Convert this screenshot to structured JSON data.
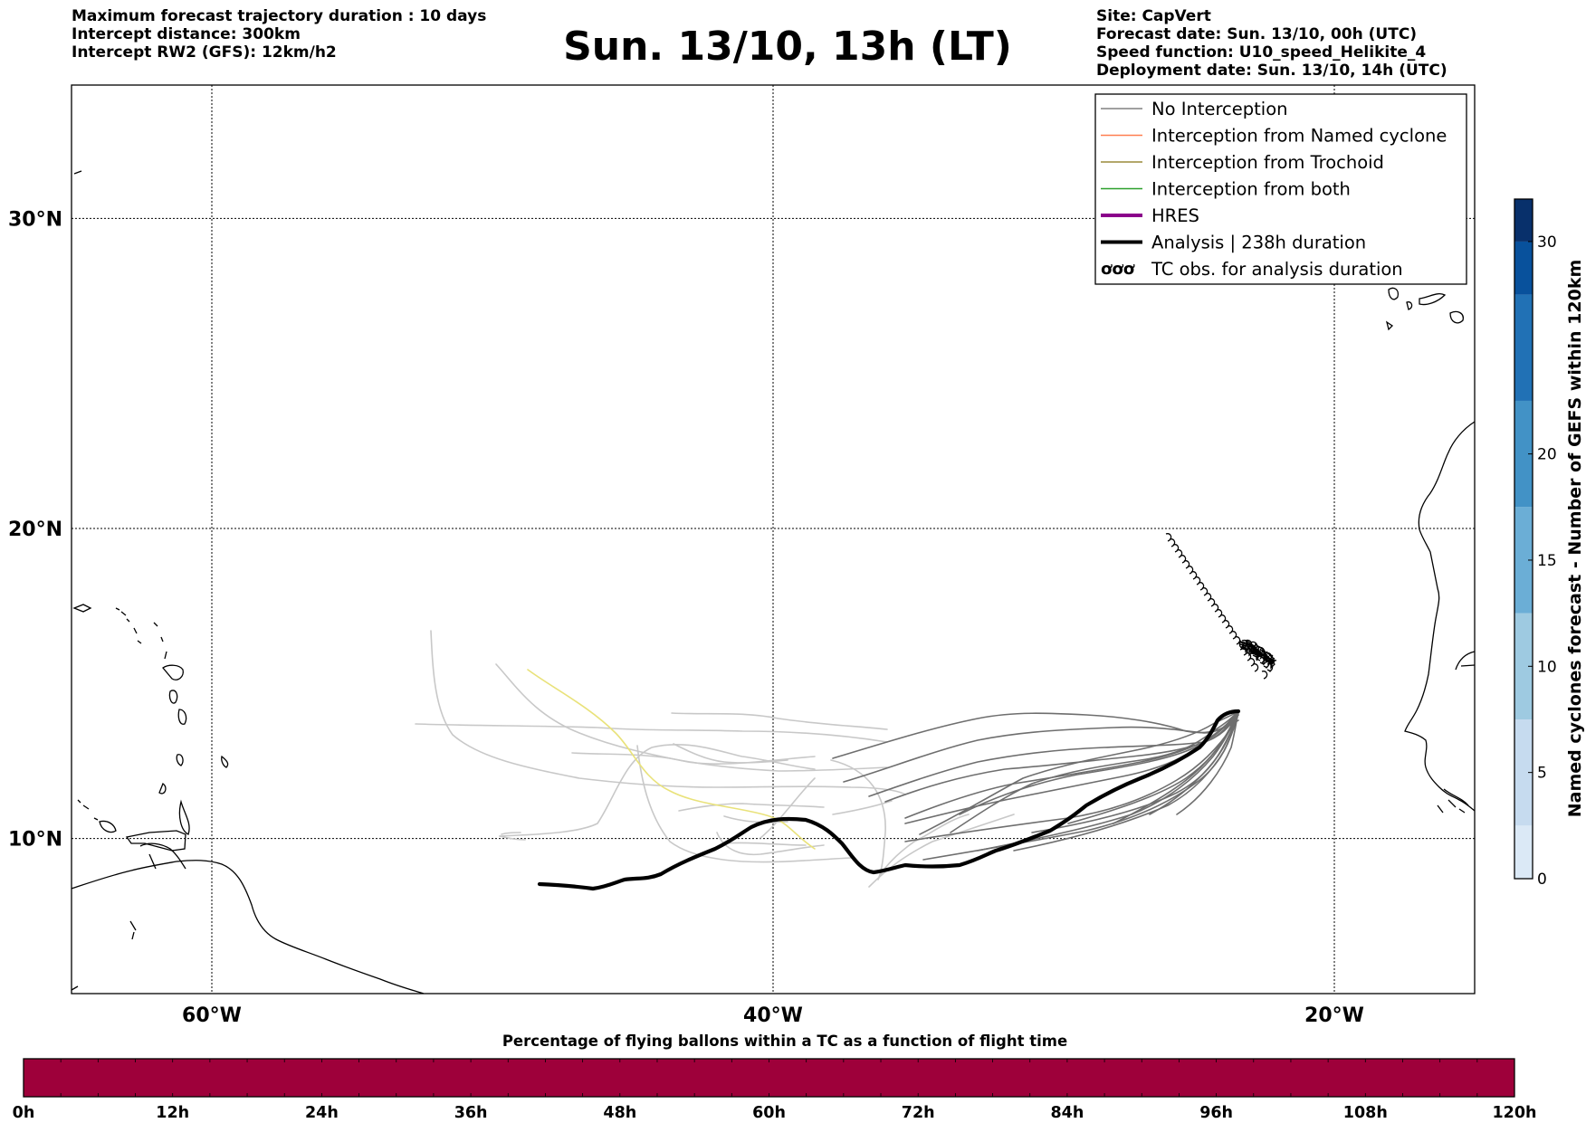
{
  "header": {
    "left": [
      "Maximum forecast trajectory duration : 10 days",
      "Intercept distance: 300km",
      "Intercept RW2 (GFS):  12km/h2"
    ],
    "title": "Sun. 13/10, 13h (LT)",
    "right": [
      "Site: CapVert",
      "Forecast date: Sun. 13/10, 00h (UTC)",
      "Speed function: U10_speed_Helikite_4",
      "Deployment date: Sun. 13/10, 14h (UTC)"
    ]
  },
  "map": {
    "lat_labels": [
      "30°N",
      "20°N",
      "10°N"
    ],
    "lon_labels": [
      "60°W",
      "40°W",
      "20°W"
    ],
    "lat_values": [
      30,
      20,
      10
    ],
    "lon_values": [
      -60,
      -40,
      -20
    ],
    "lon_range": [
      -65,
      -15
    ],
    "lat_range": [
      5,
      34.3
    ]
  },
  "legend": {
    "items": [
      {
        "label": "No Interception",
        "color": "#808080",
        "style": "thin"
      },
      {
        "label": "Interception from Named cyclone",
        "color": "#ff7f50",
        "style": "thin"
      },
      {
        "label": "Interception from Trochoid",
        "color": "#9a8a3a",
        "style": "thin"
      },
      {
        "label": "Interception from both",
        "color": "#2ca02c",
        "style": "thin"
      },
      {
        "label": "HRES",
        "color": "#8b008b",
        "style": "thick"
      },
      {
        "label": "Analysis | 238h duration",
        "color": "#000000",
        "style": "thick"
      },
      {
        "label": "TC obs. for analysis duration",
        "icon": "cyclone-symbols-icon"
      }
    ]
  },
  "colorbar_right": {
    "label": "Named cyclones forecast - Number of GEFS within 120km",
    "ticks": [
      "0",
      "5",
      "10",
      "15",
      "20",
      "30"
    ],
    "tick_values": [
      0,
      5,
      10,
      15,
      20,
      30
    ],
    "max": 32,
    "colors": [
      "#dbe9f6",
      "#c6dbef",
      "#9ecae1",
      "#6baed6",
      "#4292c6",
      "#2171b5",
      "#08519c",
      "#08306b"
    ]
  },
  "colorbar_bottom": {
    "title": "Percentage of flying ballons within a TC as a function of flight time",
    "ticks": [
      "0h",
      "12h",
      "24h",
      "36h",
      "48h",
      "60h",
      "72h",
      "84h",
      "96h",
      "108h",
      "120h"
    ],
    "tick_values": [
      0,
      12,
      24,
      36,
      48,
      60,
      72,
      84,
      96,
      108,
      120
    ],
    "fill_color": "#9e003a"
  }
}
